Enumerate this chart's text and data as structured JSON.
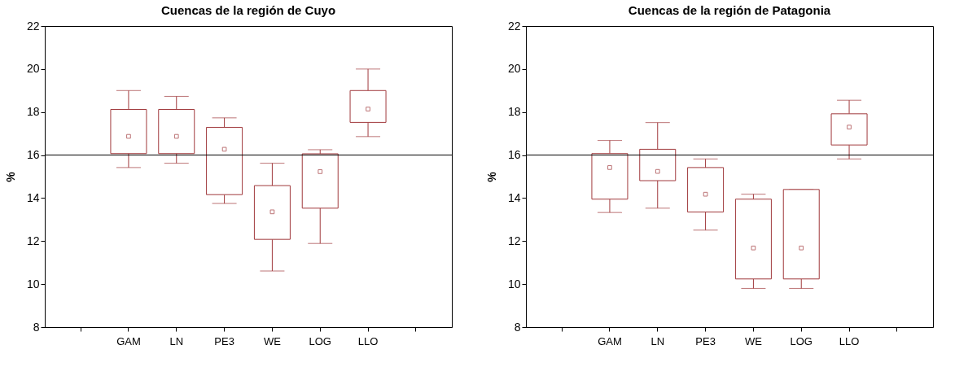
{
  "chart_data": [
    {
      "type": "box",
      "title": "Cuencas de la región de Cuyo",
      "ylabel": "%",
      "categories": [
        null,
        "GAM",
        "LN",
        "PE3",
        "WE",
        "LOG",
        "LLO",
        null
      ],
      "ylim": [
        8,
        22
      ],
      "yticks": [
        8,
        10,
        12,
        14,
        16,
        18,
        20,
        22
      ],
      "grid": false,
      "marker": "square",
      "ref_lines": [
        {
          "axis": "y",
          "value": 16,
          "color": "#000000"
        }
      ],
      "series": [
        {
          "color": "#a0393c",
          "boxes": [
            null,
            {
              "low": 15.42,
              "q1": 16.07,
              "median": 16.87,
              "q3": 18.12,
              "high": 19.0
            },
            {
              "low": 15.62,
              "q1": 16.07,
              "median": 16.87,
              "q3": 18.12,
              "high": 18.73
            },
            {
              "low": 13.75,
              "q1": 14.16,
              "median": 16.27,
              "q3": 17.29,
              "high": 17.73
            },
            {
              "low": 10.61,
              "q1": 12.08,
              "median": 13.36,
              "q3": 14.58,
              "high": 15.62
            },
            {
              "low": 11.89,
              "q1": 13.53,
              "median": 15.23,
              "q3": 16.06,
              "high": 16.25
            },
            {
              "low": 16.86,
              "q1": 17.52,
              "median": 18.14,
              "q3": 19.0,
              "high": 20.0
            },
            null
          ]
        }
      ]
    },
    {
      "type": "box",
      "title": "Cuencas de la región de Patagonia",
      "ylabel": "%",
      "categories": [
        null,
        "GAM",
        "LN",
        "PE3",
        "WE",
        "LOG",
        "LLO",
        null
      ],
      "ylim": [
        8,
        22
      ],
      "yticks": [
        8,
        10,
        12,
        14,
        16,
        18,
        20,
        22
      ],
      "grid": false,
      "marker": "square",
      "ref_lines": [
        {
          "axis": "y",
          "value": 16,
          "color": "#000000"
        }
      ],
      "series": [
        {
          "color": "#a0393c",
          "boxes": [
            null,
            {
              "low": 13.33,
              "q1": 13.95,
              "median": 15.42,
              "q3": 16.07,
              "high": 16.68
            },
            {
              "low": 13.53,
              "q1": 14.81,
              "median": 15.24,
              "q3": 16.27,
              "high": 17.51
            },
            {
              "low": 12.51,
              "q1": 13.35,
              "median": 14.18,
              "q3": 15.42,
              "high": 15.82
            },
            {
              "low": 9.8,
              "q1": 10.24,
              "median": 11.68,
              "q3": 13.95,
              "high": 14.18
            },
            {
              "low": 9.8,
              "q1": 10.24,
              "median": 11.68,
              "q3": 14.4,
              "high": 14.4
            },
            {
              "low": 15.82,
              "q1": 16.47,
              "median": 17.3,
              "q3": 17.92,
              "high": 18.55
            },
            null
          ]
        }
      ]
    }
  ]
}
